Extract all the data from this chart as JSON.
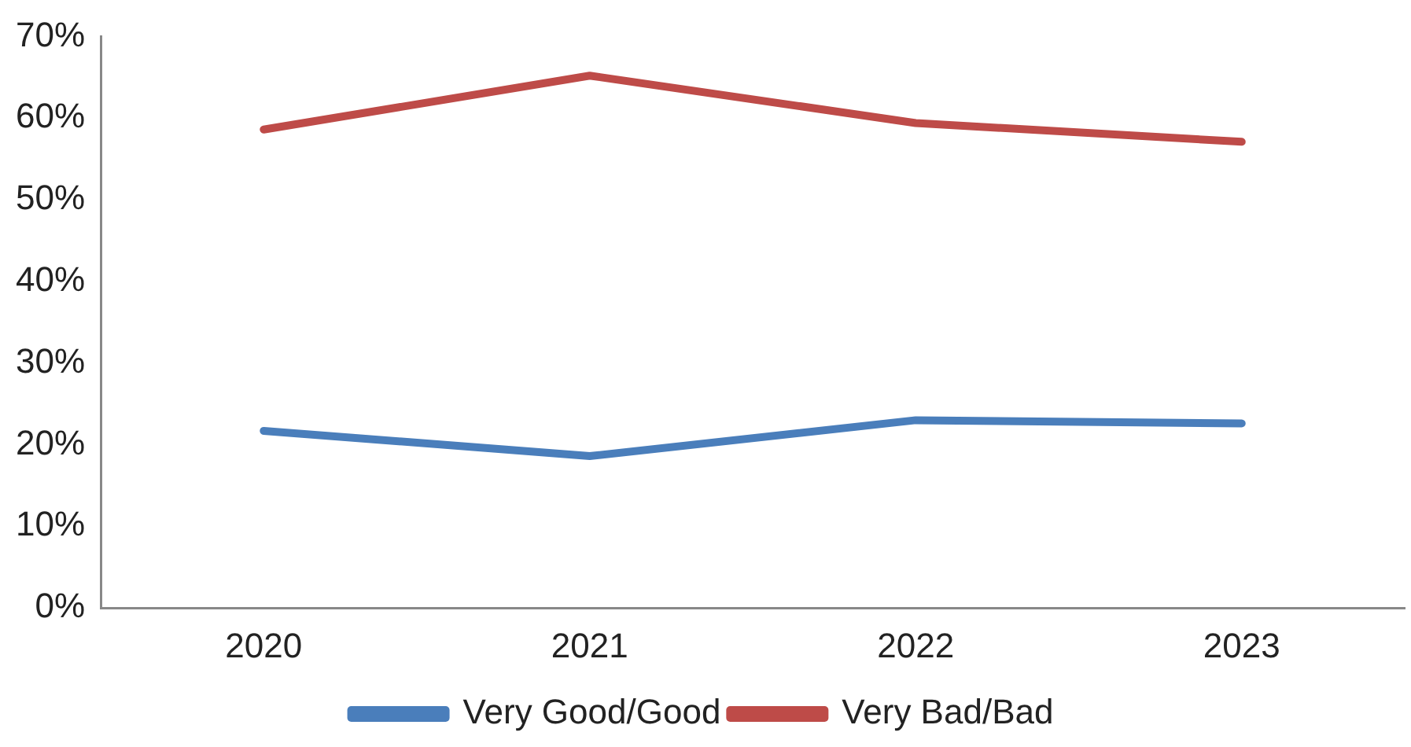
{
  "chart_data": {
    "type": "line",
    "categories": [
      "2020",
      "2021",
      "2022",
      "2023"
    ],
    "series": [
      {
        "name": "Very Good/Good",
        "color": "#4a7ebb",
        "values": [
          21.7,
          18.6,
          23.0,
          22.6
        ]
      },
      {
        "name": "Very Bad/Bad",
        "color": "#be4b48",
        "values": [
          58.6,
          65.2,
          59.4,
          57.1
        ]
      }
    ],
    "ylim": [
      0,
      70
    ],
    "yticks": [
      {
        "value": 0,
        "label": "0%"
      },
      {
        "value": 10,
        "label": "10%"
      },
      {
        "value": 20,
        "label": "20%"
      },
      {
        "value": 30,
        "label": "30%"
      },
      {
        "value": 40,
        "label": "40%"
      },
      {
        "value": 50,
        "label": "50%"
      },
      {
        "value": 60,
        "label": "60%"
      },
      {
        "value": 70,
        "label": "70%"
      }
    ],
    "grid": false,
    "legend": "bottom",
    "marker": "none",
    "line_style": "solid"
  }
}
